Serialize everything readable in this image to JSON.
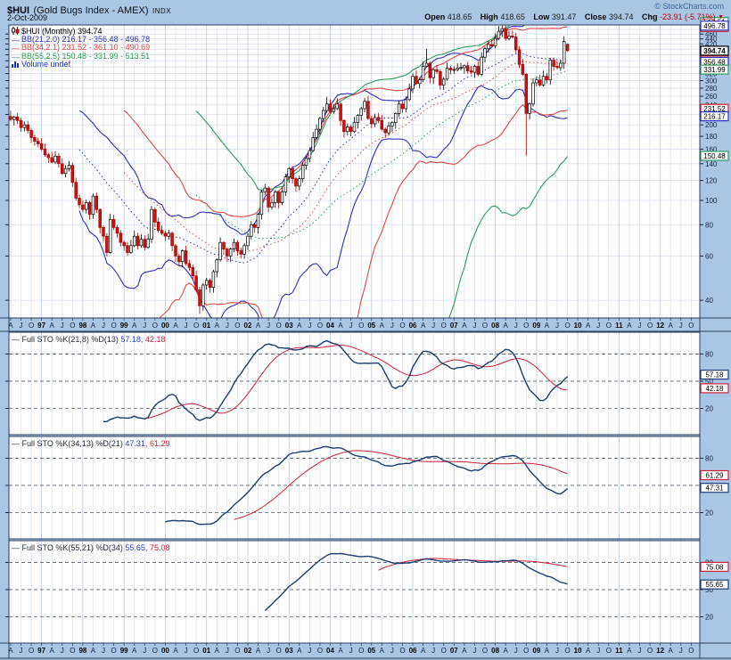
{
  "header": {
    "symbol": "$HUI",
    "name": "(Gold Bugs Index - AMEX)",
    "type_tag": "INDX",
    "date": "2-Oct-2009",
    "copyright": "© StockCharts.com",
    "quote": {
      "open_label": "Open",
      "open": "418.65",
      "high_label": "High",
      "high": "418.65",
      "low_label": "Low",
      "low": "391.47",
      "close_label": "Close",
      "close": "394.74",
      "chg_label": "Chg",
      "chg": "-23.91 (-5.71%)",
      "chg_direction_icon": "▼"
    }
  },
  "legend": {
    "main": "$HUI (Monthly) 394.74",
    "bb1": {
      "label": "BB(21,2.0) 216.17 - 356.48 - 496.78",
      "color": "#2f2fbe"
    },
    "bb2": {
      "label": "BB(34,2.1) 231.52 - 361.10 - 490.69",
      "color": "#e04848"
    },
    "bb3": {
      "label": "BB(55,2.5) 150.48 - 331.99 - 513.51",
      "color": "#2f9959"
    },
    "volume": {
      "label": "Volume undef",
      "color": "#2233cc"
    }
  },
  "xaxis": {
    "start": "1996-04",
    "axis_total_months": 201,
    "quarter_letters": [
      "A",
      "J",
      "O"
    ],
    "years": [
      "97",
      "98",
      "99",
      "00",
      "01",
      "02",
      "03",
      "04",
      "05",
      "06",
      "07",
      "08",
      "09",
      "10",
      "11",
      "12"
    ]
  },
  "chart_data": [
    {
      "type": "candlestick",
      "title": "$HUI (Monthly)",
      "timeframe": "monthly",
      "yscale": "log",
      "ylim": [
        34,
        500
      ],
      "ytick_min": 40,
      "ytick_max": 480,
      "ytick_step": 20,
      "label_ticks_min": 40,
      "label_ticks_max": 460,
      "closes": [
        210,
        215,
        208,
        195,
        200,
        190,
        178,
        172,
        168,
        160,
        152,
        148,
        142,
        150,
        140,
        128,
        134,
        138,
        118,
        102,
        96,
        92,
        98,
        88,
        104,
        92,
        78,
        72,
        62,
        84,
        78,
        74,
        68,
        66,
        62,
        66,
        72,
        66,
        70,
        65,
        70,
        92,
        82,
        76,
        74,
        72,
        74,
        66,
        60,
        57,
        63,
        56,
        54,
        50,
        44,
        38,
        46,
        48,
        45,
        52,
        58,
        68,
        64,
        60,
        64,
        68,
        63,
        61,
        66,
        72,
        80,
        78,
        88,
        108,
        112,
        94,
        98,
        108,
        98,
        108,
        124,
        134,
        122,
        114,
        122,
        138,
        147,
        158,
        178,
        192,
        212,
        228,
        242,
        226,
        232,
        242,
        208,
        188,
        196,
        188,
        204,
        218,
        232,
        248,
        212,
        202,
        214,
        208,
        192,
        186,
        198,
        204,
        222,
        242,
        232,
        252,
        278,
        312,
        292,
        302,
        342,
        352,
        308,
        332,
        326,
        288,
        304,
        336,
        331,
        332,
        336,
        338,
        344,
        328,
        324,
        342,
        318,
        372,
        402,
        418,
        412,
        442,
        472,
        483,
        442,
        452,
        447,
        398,
        348,
        318,
        222,
        242,
        294,
        302,
        288,
        312,
        302,
        362,
        342,
        338,
        352,
        430,
        394.74
      ],
      "ohlc_overrides": {
        "55": {
          "l": 35.31
        },
        "92": {
          "h": 258.6
        },
        "121": {
          "h": 401.69
        },
        "143": {
          "h": 519.68
        },
        "150": {
          "l": 150.27
        },
        "161": {
          "h": 451.0
        },
        "162": {
          "o": 418.65,
          "h": 418.65,
          "l": 391.47,
          "c": 394.74
        }
      },
      "overlays": [
        {
          "name": "BB",
          "period": 21,
          "mult": 2.0,
          "color": "#2f2fbe",
          "lower": 216.17,
          "mid": 356.48,
          "upper": 496.78
        },
        {
          "name": "BB",
          "period": 34,
          "mult": 2.1,
          "color": "#e04848",
          "lower": 231.52,
          "mid": 361.1,
          "upper": 490.69
        },
        {
          "name": "BB",
          "period": 55,
          "mult": 2.5,
          "color": "#2f9959",
          "lower": 150.48,
          "mid": 331.99,
          "upper": 513.51
        }
      ],
      "axis_boxes": [
        {
          "v": 490.69,
          "label": "490.69",
          "color": "#cc2222"
        },
        {
          "v": 513.51,
          "label": "513.51",
          "color": "#2f9959"
        },
        {
          "v": 496.78,
          "label": "496.78",
          "color": "#2f2fbe"
        },
        {
          "v": 361.1,
          "label": "361.10",
          "color": "#cc2222"
        },
        {
          "v": 356.48,
          "label": "356.48",
          "color": "#2f2fbe"
        },
        {
          "v": 331.99,
          "label": "331.99",
          "color": "#2f9959"
        },
        {
          "v": 231.52,
          "label": "231.52",
          "color": "#cc2222"
        },
        {
          "v": 216.17,
          "label": "216.17",
          "color": "#2f2fbe"
        },
        {
          "v": 150.48,
          "label": "150.48",
          "color": "#2f9959"
        },
        {
          "v": 394.74,
          "label": "394.74",
          "color": "#000000",
          "bold": true
        }
      ],
      "up_candle": {
        "fill": "#ffffff",
        "stroke": "#000000"
      },
      "down_candle": {
        "fill": "#cc1111",
        "stroke": "#aa0000"
      }
    },
    {
      "type": "line",
      "title": "Full STO %K(21,8) %D(13)",
      "separator": ", ",
      "k": {
        "period": 21,
        "smooth": 8,
        "value": "57.18",
        "color": "#1d3c6e"
      },
      "d": {
        "period": 13,
        "value": "42.18",
        "color": "#cc2233"
      },
      "yticks": [
        80,
        50,
        20
      ],
      "ylim": [
        0,
        100
      ],
      "axis_boxes": [
        {
          "v": 57.18,
          "label": "57.18",
          "color": "#1d3c6e"
        },
        {
          "v": 42.18,
          "label": "42.18",
          "color": "#cc2233"
        }
      ]
    },
    {
      "type": "line",
      "title": "Full STO %K(34,13) %D(21)",
      "separator": ", ",
      "k": {
        "period": 34,
        "smooth": 13,
        "value": "47.31",
        "color": "#1d3c6e"
      },
      "d": {
        "period": 21,
        "value": "61.29",
        "color": "#cc2233"
      },
      "yticks": [
        80,
        50,
        20
      ],
      "ylim": [
        0,
        100
      ],
      "axis_boxes": [
        {
          "v": 61.29,
          "label": "61.29",
          "color": "#cc2233"
        },
        {
          "v": 47.31,
          "label": "47.31",
          "color": "#1d3c6e"
        }
      ]
    },
    {
      "type": "line",
      "title": "Full STO %K(55,21) %D(34)",
      "separator": ", ",
      "k": {
        "period": 55,
        "smooth": 21,
        "value": "55.65",
        "color": "#1d3c6e"
      },
      "d": {
        "period": 34,
        "value": "75.08",
        "color": "#cc2233"
      },
      "yticks": [
        80,
        50,
        20
      ],
      "ylim": [
        0,
        100
      ],
      "axis_boxes": [
        {
          "v": 75.08,
          "label": "75.08",
          "color": "#cc2233"
        },
        {
          "v": 55.65,
          "label": "55.65",
          "color": "#1d3c6e"
        }
      ]
    }
  ]
}
